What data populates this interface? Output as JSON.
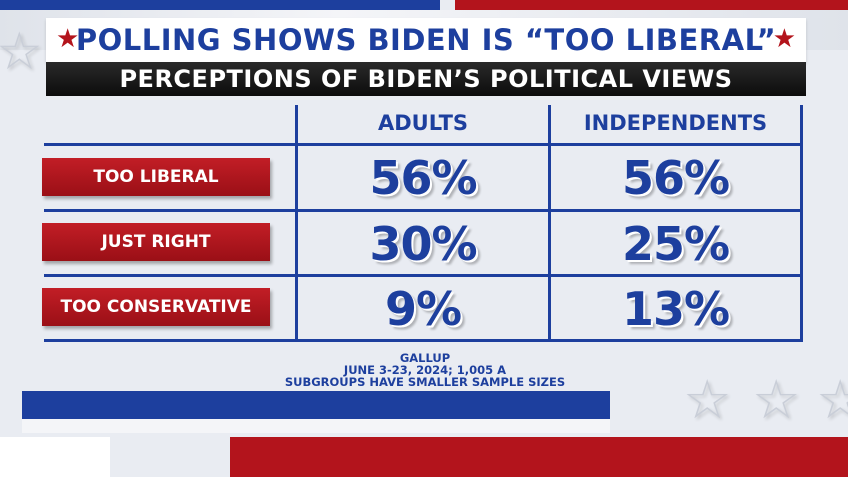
{
  "header": {
    "title": "POLLING SHOWS BIDEN IS “TOO LIBERAL”",
    "subtitle": "PERCEPTIONS OF BIDEN’S POLITICAL VIEWS"
  },
  "table": {
    "columns": [
      "ADULTS",
      "INDEPENDENTS"
    ],
    "rows": [
      {
        "label": "TOO LIBERAL",
        "values": [
          "56%",
          "56%"
        ]
      },
      {
        "label": "JUST RIGHT",
        "values": [
          "30%",
          "25%"
        ]
      },
      {
        "label": "TOO CONSERVATIVE",
        "values": [
          "9%",
          "13%"
        ]
      }
    ]
  },
  "source": {
    "lines": [
      "GALLUP",
      "JUNE 3-23, 2024; 1,005 A",
      "SUBGROUPS HAVE SMALLER SAMPLE SIZES"
    ]
  },
  "colors": {
    "accent_blue": "#1d3f9e",
    "accent_red": "#b3141c",
    "subtitle_bar": "#111111"
  },
  "icons": {
    "title_star": "★",
    "decor_star": "☆"
  }
}
